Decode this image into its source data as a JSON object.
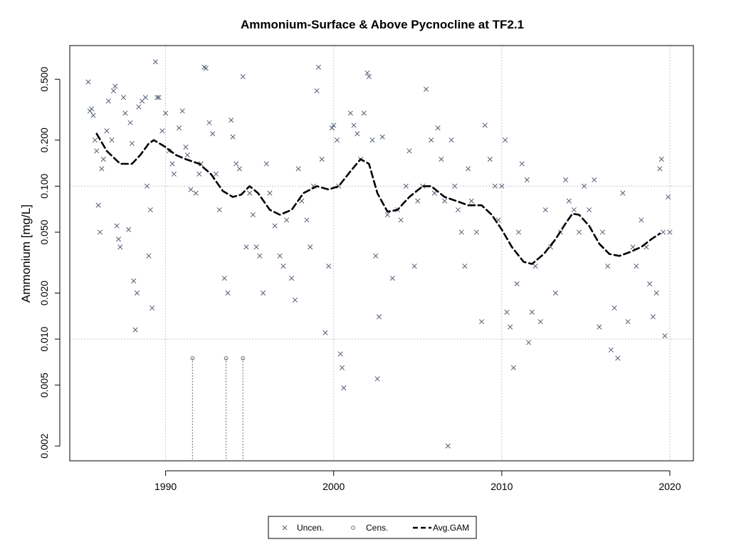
{
  "chart_data": {
    "type": "scatter",
    "title": "Ammonium-Surface & Above Pycnocline at TF2.1",
    "ylabel": "Ammonium [mg/L]",
    "xlabel": "",
    "y_scale": "log",
    "xlim": [
      1984.3,
      2021.4
    ],
    "ylim": [
      0.0016,
      0.83
    ],
    "x_ticks": [
      1990,
      2000,
      2010,
      2020
    ],
    "x_tick_labels": [
      "1990",
      "2000",
      "2010",
      "2020"
    ],
    "y_ticks": [
      0.002,
      0.005,
      0.01,
      0.02,
      0.05,
      0.1,
      0.2,
      0.5
    ],
    "y_tick_labels": [
      "0.002",
      "0.005",
      "0.010",
      "0.020",
      "0.050",
      "0.100",
      "0.200",
      "0.500"
    ],
    "grid_y": [
      0.01,
      0.1
    ],
    "grid_x": [
      1990,
      2000,
      2010,
      2020
    ],
    "legend_position": "bottom-center",
    "colors": {
      "uncen": "#4f5d73",
      "cens": "#707070",
      "gam": "#000000",
      "grid": "#c8c8c8"
    },
    "series": [
      {
        "name": "Uncen.",
        "marker": "x",
        "points": [
          [
            1985.4,
            0.48
          ],
          [
            1985.5,
            0.31
          ],
          [
            1985.6,
            0.32
          ],
          [
            1985.7,
            0.29
          ],
          [
            1985.8,
            0.2
          ],
          [
            1985.9,
            0.17
          ],
          [
            1986.0,
            0.075
          ],
          [
            1986.1,
            0.05
          ],
          [
            1986.2,
            0.13
          ],
          [
            1986.3,
            0.15
          ],
          [
            1986.5,
            0.23
          ],
          [
            1986.6,
            0.36
          ],
          [
            1986.8,
            0.2
          ],
          [
            1986.9,
            0.42
          ],
          [
            1987.0,
            0.45
          ],
          [
            1987.1,
            0.055
          ],
          [
            1987.2,
            0.045
          ],
          [
            1987.3,
            0.04
          ],
          [
            1987.5,
            0.38
          ],
          [
            1987.6,
            0.3
          ],
          [
            1987.8,
            0.052
          ],
          [
            1987.9,
            0.26
          ],
          [
            1988.0,
            0.19
          ],
          [
            1988.1,
            0.024
          ],
          [
            1988.2,
            0.0115
          ],
          [
            1988.3,
            0.02
          ],
          [
            1988.4,
            0.33
          ],
          [
            1988.6,
            0.36
          ],
          [
            1988.8,
            0.38
          ],
          [
            1988.9,
            0.1
          ],
          [
            1989.0,
            0.035
          ],
          [
            1989.1,
            0.07
          ],
          [
            1989.2,
            0.016
          ],
          [
            1989.4,
            0.65
          ],
          [
            1989.5,
            0.38
          ],
          [
            1989.6,
            0.38
          ],
          [
            1989.8,
            0.23
          ],
          [
            1990.0,
            0.3
          ],
          [
            1990.2,
            0.17
          ],
          [
            1990.4,
            0.14
          ],
          [
            1990.5,
            0.12
          ],
          [
            1990.8,
            0.24
          ],
          [
            1991.0,
            0.31
          ],
          [
            1991.2,
            0.18
          ],
          [
            1991.3,
            0.16
          ],
          [
            1991.5,
            0.095
          ],
          [
            1991.8,
            0.09
          ],
          [
            1992.0,
            0.12
          ],
          [
            1992.1,
            0.14
          ],
          [
            1992.3,
            0.6
          ],
          [
            1992.4,
            0.59
          ],
          [
            1992.6,
            0.26
          ],
          [
            1992.8,
            0.22
          ],
          [
            1993.0,
            0.12
          ],
          [
            1993.2,
            0.07
          ],
          [
            1993.5,
            0.025
          ],
          [
            1993.7,
            0.02
          ],
          [
            1993.9,
            0.27
          ],
          [
            1994.0,
            0.21
          ],
          [
            1994.2,
            0.14
          ],
          [
            1994.4,
            0.13
          ],
          [
            1994.6,
            0.52
          ],
          [
            1994.8,
            0.04
          ],
          [
            1995.0,
            0.09
          ],
          [
            1995.2,
            0.065
          ],
          [
            1995.4,
            0.04
          ],
          [
            1995.6,
            0.035
          ],
          [
            1995.8,
            0.02
          ],
          [
            1996.0,
            0.14
          ],
          [
            1996.2,
            0.09
          ],
          [
            1996.5,
            0.055
          ],
          [
            1996.8,
            0.035
          ],
          [
            1997.0,
            0.03
          ],
          [
            1997.2,
            0.06
          ],
          [
            1997.5,
            0.025
          ],
          [
            1997.7,
            0.018
          ],
          [
            1997.9,
            0.13
          ],
          [
            1998.1,
            0.08
          ],
          [
            1998.4,
            0.06
          ],
          [
            1998.6,
            0.04
          ],
          [
            1998.8,
            0.1
          ],
          [
            1999.0,
            0.42
          ],
          [
            1999.1,
            0.6
          ],
          [
            1999.3,
            0.15
          ],
          [
            1999.5,
            0.011
          ],
          [
            1999.7,
            0.03
          ],
          [
            1999.9,
            0.24
          ],
          [
            2000.0,
            0.25
          ],
          [
            2000.2,
            0.2
          ],
          [
            2000.3,
            0.1
          ],
          [
            2000.4,
            0.008
          ],
          [
            2000.5,
            0.0065
          ],
          [
            2000.6,
            0.0048
          ],
          [
            2001.0,
            0.3
          ],
          [
            2001.2,
            0.25
          ],
          [
            2001.4,
            0.22
          ],
          [
            2001.6,
            0.15
          ],
          [
            2001.8,
            0.3
          ],
          [
            2002.0,
            0.55
          ],
          [
            2002.1,
            0.52
          ],
          [
            2002.3,
            0.2
          ],
          [
            2002.5,
            0.035
          ],
          [
            2002.6,
            0.0055
          ],
          [
            2002.7,
            0.014
          ],
          [
            2002.9,
            0.21
          ],
          [
            2003.2,
            0.065
          ],
          [
            2003.5,
            0.025
          ],
          [
            2003.8,
            0.07
          ],
          [
            2004.0,
            0.06
          ],
          [
            2004.3,
            0.1
          ],
          [
            2004.5,
            0.17
          ],
          [
            2004.8,
            0.03
          ],
          [
            2005.0,
            0.08
          ],
          [
            2005.3,
            0.1
          ],
          [
            2005.5,
            0.43
          ],
          [
            2005.8,
            0.2
          ],
          [
            2006.0,
            0.09
          ],
          [
            2006.2,
            0.24
          ],
          [
            2006.4,
            0.15
          ],
          [
            2006.6,
            0.08
          ],
          [
            2006.8,
            0.002
          ],
          [
            2007.0,
            0.2
          ],
          [
            2007.2,
            0.1
          ],
          [
            2007.4,
            0.07
          ],
          [
            2007.6,
            0.05
          ],
          [
            2007.8,
            0.03
          ],
          [
            2008.0,
            0.13
          ],
          [
            2008.2,
            0.08
          ],
          [
            2008.5,
            0.05
          ],
          [
            2008.8,
            0.013
          ],
          [
            2009.0,
            0.25
          ],
          [
            2009.3,
            0.15
          ],
          [
            2009.6,
            0.1
          ],
          [
            2009.8,
            0.06
          ],
          [
            2010.0,
            0.1
          ],
          [
            2010.2,
            0.2
          ],
          [
            2010.3,
            0.015
          ],
          [
            2010.5,
            0.012
          ],
          [
            2010.7,
            0.0065
          ],
          [
            2010.9,
            0.023
          ],
          [
            2011.0,
            0.05
          ],
          [
            2011.2,
            0.14
          ],
          [
            2011.5,
            0.11
          ],
          [
            2011.6,
            0.0095
          ],
          [
            2011.8,
            0.015
          ],
          [
            2012.0,
            0.03
          ],
          [
            2012.3,
            0.013
          ],
          [
            2012.6,
            0.07
          ],
          [
            2012.9,
            0.04
          ],
          [
            2013.2,
            0.02
          ],
          [
            2013.5,
            0.05
          ],
          [
            2013.8,
            0.11
          ],
          [
            2014.0,
            0.08
          ],
          [
            2014.3,
            0.07
          ],
          [
            2014.6,
            0.05
          ],
          [
            2014.9,
            0.1
          ],
          [
            2015.2,
            0.07
          ],
          [
            2015.5,
            0.11
          ],
          [
            2015.8,
            0.012
          ],
          [
            2016.0,
            0.05
          ],
          [
            2016.3,
            0.03
          ],
          [
            2016.5,
            0.0085
          ],
          [
            2016.7,
            0.016
          ],
          [
            2016.9,
            0.0075
          ],
          [
            2017.2,
            0.09
          ],
          [
            2017.5,
            0.013
          ],
          [
            2017.8,
            0.04
          ],
          [
            2018.0,
            0.03
          ],
          [
            2018.3,
            0.06
          ],
          [
            2018.6,
            0.04
          ],
          [
            2018.8,
            0.023
          ],
          [
            2019.0,
            0.014
          ],
          [
            2019.2,
            0.02
          ],
          [
            2019.4,
            0.13
          ],
          [
            2019.5,
            0.15
          ],
          [
            2019.6,
            0.05
          ],
          [
            2019.7,
            0.0105
          ],
          [
            2019.9,
            0.085
          ],
          [
            2020.0,
            0.05
          ]
        ]
      },
      {
        "name": "Cens.",
        "marker": "circle",
        "points": [
          [
            1991.6,
            0.0075
          ],
          [
            1993.6,
            0.0075
          ],
          [
            1994.6,
            0.0075
          ]
        ]
      },
      {
        "name": "Avg.GAM",
        "line": "dashed",
        "points": [
          [
            1985.9,
            0.22
          ],
          [
            1986.5,
            0.17
          ],
          [
            1987.3,
            0.14
          ],
          [
            1988.0,
            0.14
          ],
          [
            1988.5,
            0.16
          ],
          [
            1989.0,
            0.19
          ],
          [
            1989.3,
            0.2
          ],
          [
            1990.0,
            0.18
          ],
          [
            1990.6,
            0.16
          ],
          [
            1991.2,
            0.15
          ],
          [
            1992.0,
            0.14
          ],
          [
            1992.7,
            0.12
          ],
          [
            1993.4,
            0.093
          ],
          [
            1994.0,
            0.085
          ],
          [
            1994.5,
            0.088
          ],
          [
            1995.0,
            0.1
          ],
          [
            1995.5,
            0.09
          ],
          [
            1996.2,
            0.07
          ],
          [
            1996.8,
            0.065
          ],
          [
            1997.5,
            0.07
          ],
          [
            1998.2,
            0.09
          ],
          [
            1999.0,
            0.1
          ],
          [
            1999.7,
            0.095
          ],
          [
            2000.3,
            0.1
          ],
          [
            2001.0,
            0.125
          ],
          [
            2001.6,
            0.15
          ],
          [
            2002.1,
            0.14
          ],
          [
            2002.6,
            0.09
          ],
          [
            2003.2,
            0.068
          ],
          [
            2003.8,
            0.07
          ],
          [
            2004.5,
            0.085
          ],
          [
            2005.3,
            0.1
          ],
          [
            2005.8,
            0.1
          ],
          [
            2006.6,
            0.085
          ],
          [
            2007.3,
            0.08
          ],
          [
            2008.0,
            0.075
          ],
          [
            2008.8,
            0.075
          ],
          [
            2009.4,
            0.065
          ],
          [
            2010.0,
            0.052
          ],
          [
            2010.6,
            0.04
          ],
          [
            2011.3,
            0.032
          ],
          [
            2011.8,
            0.031
          ],
          [
            2012.5,
            0.036
          ],
          [
            2013.2,
            0.045
          ],
          [
            2013.7,
            0.055
          ],
          [
            2014.2,
            0.066
          ],
          [
            2014.6,
            0.065
          ],
          [
            2015.2,
            0.055
          ],
          [
            2015.8,
            0.042
          ],
          [
            2016.4,
            0.036
          ],
          [
            2017.0,
            0.035
          ],
          [
            2017.6,
            0.037
          ],
          [
            2018.3,
            0.04
          ],
          [
            2018.9,
            0.045
          ],
          [
            2019.4,
            0.049
          ]
        ]
      }
    ]
  }
}
